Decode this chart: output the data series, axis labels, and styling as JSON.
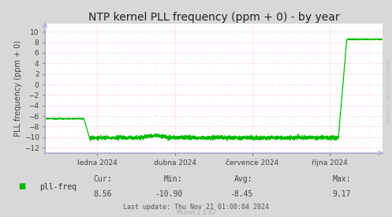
{
  "title": "NTP kernel PLL frequency (ppm + 0) - by year",
  "ylabel": "PLL frequency (ppm + 0)",
  "fig_bg_color": "#d8d8d8",
  "plot_bg_color": "#ffffff",
  "grid_color_major": "#ff9999",
  "grid_color_minor": "#ffcccc",
  "spine_color": "#aaaacc",
  "line_color": "#00bb00",
  "line_width": 0.9,
  "ylim": [
    -13.0,
    11.5
  ],
  "yticks": [
    -12,
    -10,
    -8,
    -6,
    -4,
    -2,
    0,
    2,
    4,
    6,
    8,
    10
  ],
  "xtick_labels": [
    "ledna 2024",
    "dubna 2024",
    "července 2024",
    "října 2024"
  ],
  "xtick_positions": [
    0.155,
    0.385,
    0.615,
    0.845
  ],
  "legend_label": "pll-freq",
  "legend_color": "#00bb00",
  "cur_label": "Cur:",
  "cur_val": "8.56",
  "min_label": "Min:",
  "min_val": "-10.90",
  "avg_label": "Avg:",
  "avg_val": "-8.45",
  "max_label": "Max:",
  "max_val": "9.17",
  "last_update": "Last update: Thu Nov 21 01:00:04 2024",
  "munin_label": "Munin 2.0.67",
  "watermark": "RRDTOOL / TOBI OETIKER",
  "title_fontsize": 10,
  "axis_label_fontsize": 7,
  "tick_fontsize": 6.5,
  "legend_fontsize": 7,
  "footer_fontsize": 6,
  "watermark_fontsize": 4.5
}
